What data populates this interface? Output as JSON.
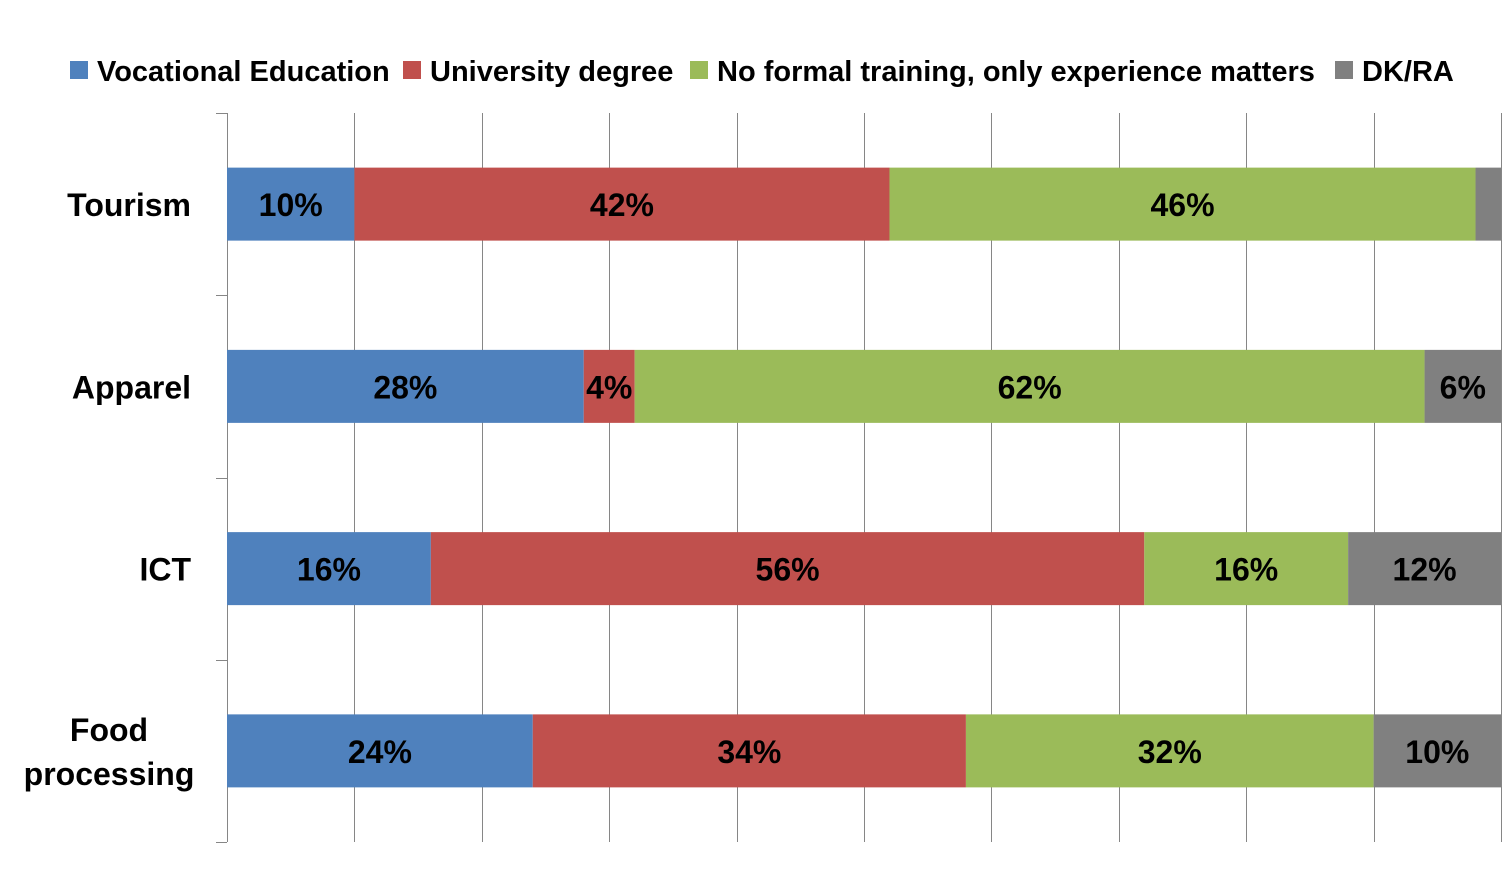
{
  "chart_data": {
    "type": "bar",
    "orientation": "horizontal",
    "stacked": true,
    "percent_stacked": true,
    "categories": [
      "Tourism",
      "Apparel",
      "ICT",
      "Food processing"
    ],
    "category_label_lines": [
      [
        "Tourism"
      ],
      [
        "Apparel"
      ],
      [
        "ICT"
      ],
      [
        "Food",
        "processing"
      ]
    ],
    "series": [
      {
        "name": "Vocational Education",
        "color": "#4F81BD",
        "values": [
          10,
          28,
          16,
          24
        ],
        "labels": [
          "10%",
          "28%",
          "16%",
          "24%"
        ]
      },
      {
        "name": "University degree",
        "color": "#C0504D",
        "values": [
          42,
          4,
          56,
          34
        ],
        "labels": [
          "42%",
          "4%",
          "56%",
          "34%"
        ]
      },
      {
        "name": "No formal training, only experience matters",
        "color": "#9BBB59",
        "values": [
          46,
          62,
          16,
          32
        ],
        "labels": [
          "46%",
          "62%",
          "16%",
          "32%"
        ]
      },
      {
        "name": "DK/RA",
        "color": "#808080",
        "values": [
          2,
          6,
          12,
          10
        ],
        "labels": [
          "",
          "6%",
          "12%",
          "10%"
        ]
      }
    ],
    "xlim": [
      0,
      100
    ],
    "x_ticks": [
      0,
      10,
      20,
      30,
      40,
      50,
      60,
      70,
      80,
      90,
      100
    ],
    "show_tick_labels": false,
    "grid": "vertical",
    "legend": "top",
    "title": "",
    "xlabel": "",
    "ylabel": ""
  }
}
